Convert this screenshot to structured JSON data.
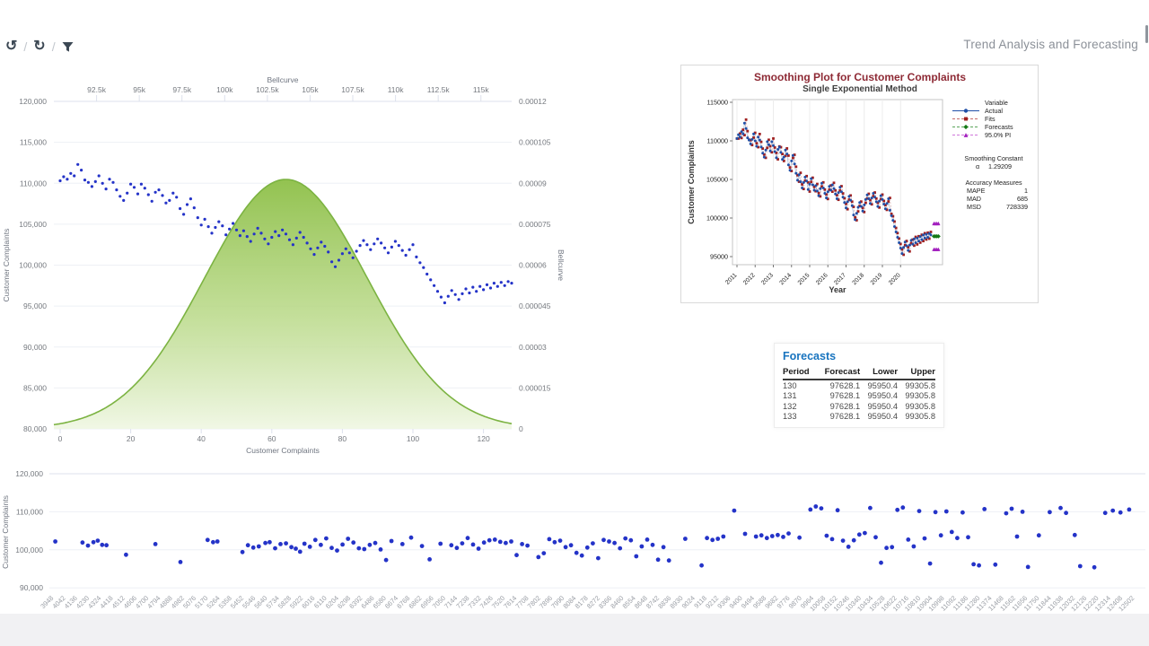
{
  "toolbar": {
    "title": "Trend Analysis and Forecasting",
    "separator": "/",
    "icons": [
      {
        "name": "undo-icon",
        "glyph": "↺"
      },
      {
        "name": "refresh-icon",
        "glyph": "↻"
      },
      {
        "name": "filter-icon",
        "glyph": ""
      }
    ]
  },
  "colors": {
    "point_blue": "#2433c8",
    "bell_stroke": "#7cb342",
    "bell_fill_top": "#8dbf47",
    "bell_fill_mid": "#b9d988",
    "bell_fill_bottom": "#f0f7e4",
    "grid": "#eef0f5",
    "grid_dark": "#dde1ec",
    "axis_text": "#75797f",
    "xlabel_gray": "#9b9fa6",
    "plot_title_maroon": "#8e2a35",
    "subtitle_gray": "#3f3f3f",
    "table_title_blue": "#1874bf",
    "actual_blue": "#2050a8",
    "actual_line": "#9bb9dc",
    "fits_red": "#a02020",
    "fits_line": "#cf9d9d",
    "forecast_green": "#157815",
    "pi_magenta": "#a21fbe"
  },
  "series": {
    "customer_complaints": [
      110300,
      110800,
      110500,
      111200,
      110900,
      112300,
      111600,
      110400,
      110100,
      109600,
      110200,
      110900,
      110000,
      109300,
      110500,
      110100,
      109200,
      108400,
      107900,
      108800,
      109900,
      109500,
      108700,
      109900,
      109400,
      108600,
      107800,
      108900,
      109200,
      108500,
      107600,
      107900,
      108800,
      108300,
      106900,
      106200,
      107400,
      108100,
      107000,
      105800,
      104900,
      105600,
      104700,
      103900,
      104600,
      105300,
      104800,
      103700,
      104400,
      105100,
      104300,
      103600,
      104200,
      103500,
      102900,
      103800,
      104500,
      103900,
      103200,
      102600,
      103400,
      104100,
      103600,
      104300,
      103800,
      103100,
      102500,
      103300,
      104000,
      103400,
      102700,
      102000,
      101300,
      102100,
      102800,
      102300,
      101600,
      100400,
      99800,
      100600,
      101400,
      102000,
      101500,
      100900,
      101700,
      102400,
      103000,
      102500,
      101900,
      102600,
      103200,
      102700,
      102100,
      101500,
      102200,
      102900,
      102400,
      101800,
      101200,
      101900,
      102500,
      101000,
      100300,
      99700,
      98900,
      98200,
      97500,
      96800,
      96100,
      95400,
      96200,
      96900,
      96400,
      95800,
      96500,
      97100,
      96600,
      97300,
      96800,
      97400,
      97000,
      97600,
      97200,
      97800,
      97400,
      97900,
      97500,
      98000,
      97800
    ]
  },
  "chart_data": [
    {
      "id": "bellcurve_overlay",
      "type": "scatter",
      "top_axis": {
        "title": "Bellcurve",
        "min": 90000,
        "max": 116800,
        "tick_values": [
          92500,
          95000,
          97500,
          100000,
          102500,
          105000,
          107500,
          110000,
          112500,
          115000
        ],
        "tick_labels": [
          "92.5k",
          "95k",
          "97.5k",
          "100k",
          "102.5k",
          "105k",
          "107.5k",
          "110k",
          "112.5k",
          "115k"
        ]
      },
      "left_axis": {
        "title": "Customer Complaints",
        "min": 80000,
        "max": 120000,
        "tick_values": [
          120000,
          115000,
          110000,
          105000,
          100000,
          95000,
          90000,
          85000,
          80000
        ],
        "tick_labels": [
          "120,000",
          "115,000",
          "110,000",
          "105,000",
          "100,000",
          "95,000",
          "90,000",
          "85,000",
          "80,000"
        ]
      },
      "right_axis": {
        "title": "Bellcurve",
        "min": 0,
        "max": 0.00012,
        "tick_labels": [
          "0.00012",
          "0.000105",
          "0.00009",
          "0.000075",
          "0.00006",
          "0.000045",
          "0.00003",
          "0.000015",
          "0"
        ]
      },
      "bottom_axis": {
        "title": "Customer Complaints",
        "min": 0,
        "max": 130,
        "tick_values": [
          0,
          20,
          40,
          60,
          80,
          100,
          120
        ]
      },
      "bell": {
        "mean": 64,
        "sd": 23,
        "peak": 9.14e-05
      },
      "series_ref": "customer_complaints"
    },
    {
      "id": "smoothing_plot",
      "type": "line",
      "title": "Smoothing Plot for Customer Complaints",
      "subtitle": "Single Exponential Method",
      "xlabel": "Year",
      "ylabel": "Customer Complaints",
      "x_ticks": [
        2011,
        2012,
        2013,
        2014,
        2015,
        2016,
        2017,
        2018,
        2019,
        2020
      ],
      "y_ticks": [
        115000,
        110000,
        105000,
        100000,
        95000
      ],
      "legend": {
        "header": "Variable",
        "entries": [
          {
            "label": "Actual",
            "marker": "circle"
          },
          {
            "label": "Fits",
            "marker": "square"
          },
          {
            "label": "Forecasts",
            "marker": "diamond"
          },
          {
            "label": "95.0% PI",
            "marker": "triangle"
          }
        ]
      },
      "smoothing_constant": {
        "label": "Smoothing Constant",
        "symbol": "α",
        "value": "1.29209"
      },
      "accuracy": {
        "title": "Accuracy Measures",
        "rows": [
          [
            "MAPE",
            "1"
          ],
          [
            "MAD",
            "685"
          ],
          [
            "MSD",
            "728339"
          ]
        ]
      },
      "alpha": 1.29209,
      "forecast": {
        "periods": 4,
        "value": 97628.1,
        "lower": 95950.4,
        "upper": 99305.8
      },
      "series_ref": "customer_complaints"
    },
    {
      "id": "bottom_scatter",
      "type": "scatter",
      "ylabel": "Customer Complaints",
      "y_tick_values": [
        120000,
        110000,
        100000,
        90000
      ],
      "y_tick_labels": [
        "120,000",
        "110,000",
        "100,000",
        "90,000"
      ],
      "x_categories": [
        3948,
        4042,
        4136,
        4230,
        4324,
        4418,
        4512,
        4606,
        4700,
        4794,
        4888,
        4982,
        5076,
        5170,
        5264,
        5358,
        5452,
        5546,
        5640,
        5734,
        5828,
        5922,
        6016,
        6110,
        6204,
        6298,
        6392,
        6486,
        6580,
        6674,
        6768,
        6862,
        6956,
        7050,
        7144,
        7238,
        7332,
        7426,
        7520,
        7614,
        7708,
        7802,
        7896,
        7990,
        8084,
        8178,
        8272,
        8366,
        8460,
        8554,
        8648,
        8742,
        8836,
        8930,
        9024,
        9118,
        9212,
        9306,
        9400,
        9494,
        9588,
        9682,
        9776,
        9870,
        9964,
        10058,
        10152,
        10246,
        10340,
        10434,
        10528,
        10622,
        10716,
        10810,
        10904,
        10998,
        11092,
        11186,
        11280,
        11374,
        11468,
        11562,
        11656,
        11750,
        11844,
        11938,
        12032,
        12126,
        12220,
        12314,
        12408,
        12502
      ],
      "points": [
        [
          0.003,
          102200
        ],
        [
          0.028,
          101900
        ],
        [
          0.033,
          101100
        ],
        [
          0.038,
          102000
        ],
        [
          0.042,
          102400
        ],
        [
          0.046,
          101300
        ],
        [
          0.05,
          101200
        ],
        [
          0.068,
          98700
        ],
        [
          0.095,
          101500
        ],
        [
          0.118,
          96800
        ],
        [
          0.143,
          102600
        ],
        [
          0.148,
          102000
        ],
        [
          0.152,
          102200
        ],
        [
          0.175,
          99400
        ],
        [
          0.18,
          101200
        ],
        [
          0.185,
          100600
        ],
        [
          0.19,
          100900
        ],
        [
          0.196,
          101800
        ],
        [
          0.2,
          102000
        ],
        [
          0.205,
          100400
        ],
        [
          0.21,
          101500
        ],
        [
          0.215,
          101700
        ],
        [
          0.22,
          100700
        ],
        [
          0.224,
          100300
        ],
        [
          0.228,
          99500
        ],
        [
          0.232,
          101600
        ],
        [
          0.237,
          100800
        ],
        [
          0.242,
          102600
        ],
        [
          0.247,
          101300
        ],
        [
          0.252,
          103000
        ],
        [
          0.257,
          100500
        ],
        [
          0.262,
          99800
        ],
        [
          0.267,
          101400
        ],
        [
          0.272,
          102900
        ],
        [
          0.277,
          101900
        ],
        [
          0.282,
          100400
        ],
        [
          0.287,
          100200
        ],
        [
          0.292,
          101300
        ],
        [
          0.297,
          101800
        ],
        [
          0.302,
          100100
        ],
        [
          0.307,
          97300
        ],
        [
          0.312,
          102300
        ],
        [
          0.322,
          101500
        ],
        [
          0.33,
          103200
        ],
        [
          0.34,
          101000
        ],
        [
          0.347,
          97500
        ],
        [
          0.357,
          101600
        ],
        [
          0.367,
          101200
        ],
        [
          0.372,
          100500
        ],
        [
          0.377,
          101700
        ],
        [
          0.382,
          103100
        ],
        [
          0.387,
          101400
        ],
        [
          0.392,
          100300
        ],
        [
          0.397,
          101900
        ],
        [
          0.402,
          102500
        ],
        [
          0.407,
          102700
        ],
        [
          0.412,
          102100
        ],
        [
          0.417,
          101800
        ],
        [
          0.422,
          102200
        ],
        [
          0.427,
          98600
        ],
        [
          0.432,
          101500
        ],
        [
          0.437,
          101100
        ],
        [
          0.447,
          98100
        ],
        [
          0.452,
          99100
        ],
        [
          0.457,
          102800
        ],
        [
          0.462,
          102000
        ],
        [
          0.467,
          102400
        ],
        [
          0.472,
          100700
        ],
        [
          0.477,
          101200
        ],
        [
          0.482,
          99200
        ],
        [
          0.487,
          98500
        ],
        [
          0.492,
          100600
        ],
        [
          0.497,
          101700
        ],
        [
          0.502,
          97800
        ],
        [
          0.507,
          102600
        ],
        [
          0.512,
          102200
        ],
        [
          0.517,
          101800
        ],
        [
          0.522,
          100400
        ],
        [
          0.527,
          103000
        ],
        [
          0.532,
          102500
        ],
        [
          0.537,
          98300
        ],
        [
          0.542,
          100900
        ],
        [
          0.547,
          102700
        ],
        [
          0.552,
          101300
        ],
        [
          0.557,
          97400
        ],
        [
          0.562,
          100700
        ],
        [
          0.567,
          97200
        ],
        [
          0.582,
          102900
        ],
        [
          0.597,
          95900
        ],
        [
          0.602,
          103100
        ],
        [
          0.607,
          102600
        ],
        [
          0.612,
          102900
        ],
        [
          0.617,
          103500
        ],
        [
          0.627,
          110300
        ],
        [
          0.637,
          104200
        ],
        [
          0.647,
          103500
        ],
        [
          0.652,
          103800
        ],
        [
          0.657,
          103100
        ],
        [
          0.662,
          103600
        ],
        [
          0.667,
          103900
        ],
        [
          0.672,
          103400
        ],
        [
          0.677,
          104300
        ],
        [
          0.687,
          103200
        ],
        [
          0.697,
          110600
        ],
        [
          0.702,
          111400
        ],
        [
          0.707,
          110900
        ],
        [
          0.712,
          103700
        ],
        [
          0.717,
          102800
        ],
        [
          0.722,
          110400
        ],
        [
          0.727,
          102400
        ],
        [
          0.732,
          100800
        ],
        [
          0.737,
          102500
        ],
        [
          0.742,
          104000
        ],
        [
          0.747,
          104400
        ],
        [
          0.752,
          111000
        ],
        [
          0.757,
          103300
        ],
        [
          0.762,
          96600
        ],
        [
          0.767,
          100500
        ],
        [
          0.772,
          100700
        ],
        [
          0.777,
          110500
        ],
        [
          0.782,
          111100
        ],
        [
          0.787,
          102700
        ],
        [
          0.792,
          100900
        ],
        [
          0.797,
          110200
        ],
        [
          0.802,
          103000
        ],
        [
          0.807,
          96400
        ],
        [
          0.812,
          109900
        ],
        [
          0.817,
          103800
        ],
        [
          0.822,
          110100
        ],
        [
          0.827,
          104700
        ],
        [
          0.832,
          103100
        ],
        [
          0.837,
          109800
        ],
        [
          0.842,
          103300
        ],
        [
          0.847,
          96200
        ],
        [
          0.852,
          95900
        ],
        [
          0.857,
          110700
        ],
        [
          0.867,
          96100
        ],
        [
          0.877,
          109600
        ],
        [
          0.882,
          110800
        ],
        [
          0.887,
          103500
        ],
        [
          0.892,
          110000
        ],
        [
          0.897,
          95500
        ],
        [
          0.907,
          103800
        ],
        [
          0.917,
          109900
        ],
        [
          0.927,
          111000
        ],
        [
          0.932,
          109700
        ],
        [
          0.94,
          103900
        ],
        [
          0.945,
          95700
        ],
        [
          0.958,
          95400
        ],
        [
          0.968,
          109700
        ],
        [
          0.975,
          110300
        ],
        [
          0.982,
          109800
        ],
        [
          0.99,
          110600
        ]
      ]
    }
  ],
  "forecast_table": {
    "title": "Forecasts",
    "columns": [
      "Period",
      "Forecast",
      "Lower",
      "Upper"
    ],
    "rows": [
      [
        "130",
        "97628.1",
        "95950.4",
        "99305.8"
      ],
      [
        "131",
        "97628.1",
        "95950.4",
        "99305.8"
      ],
      [
        "132",
        "97628.1",
        "95950.4",
        "99305.8"
      ],
      [
        "133",
        "97628.1",
        "95950.4",
        "99305.8"
      ]
    ]
  }
}
